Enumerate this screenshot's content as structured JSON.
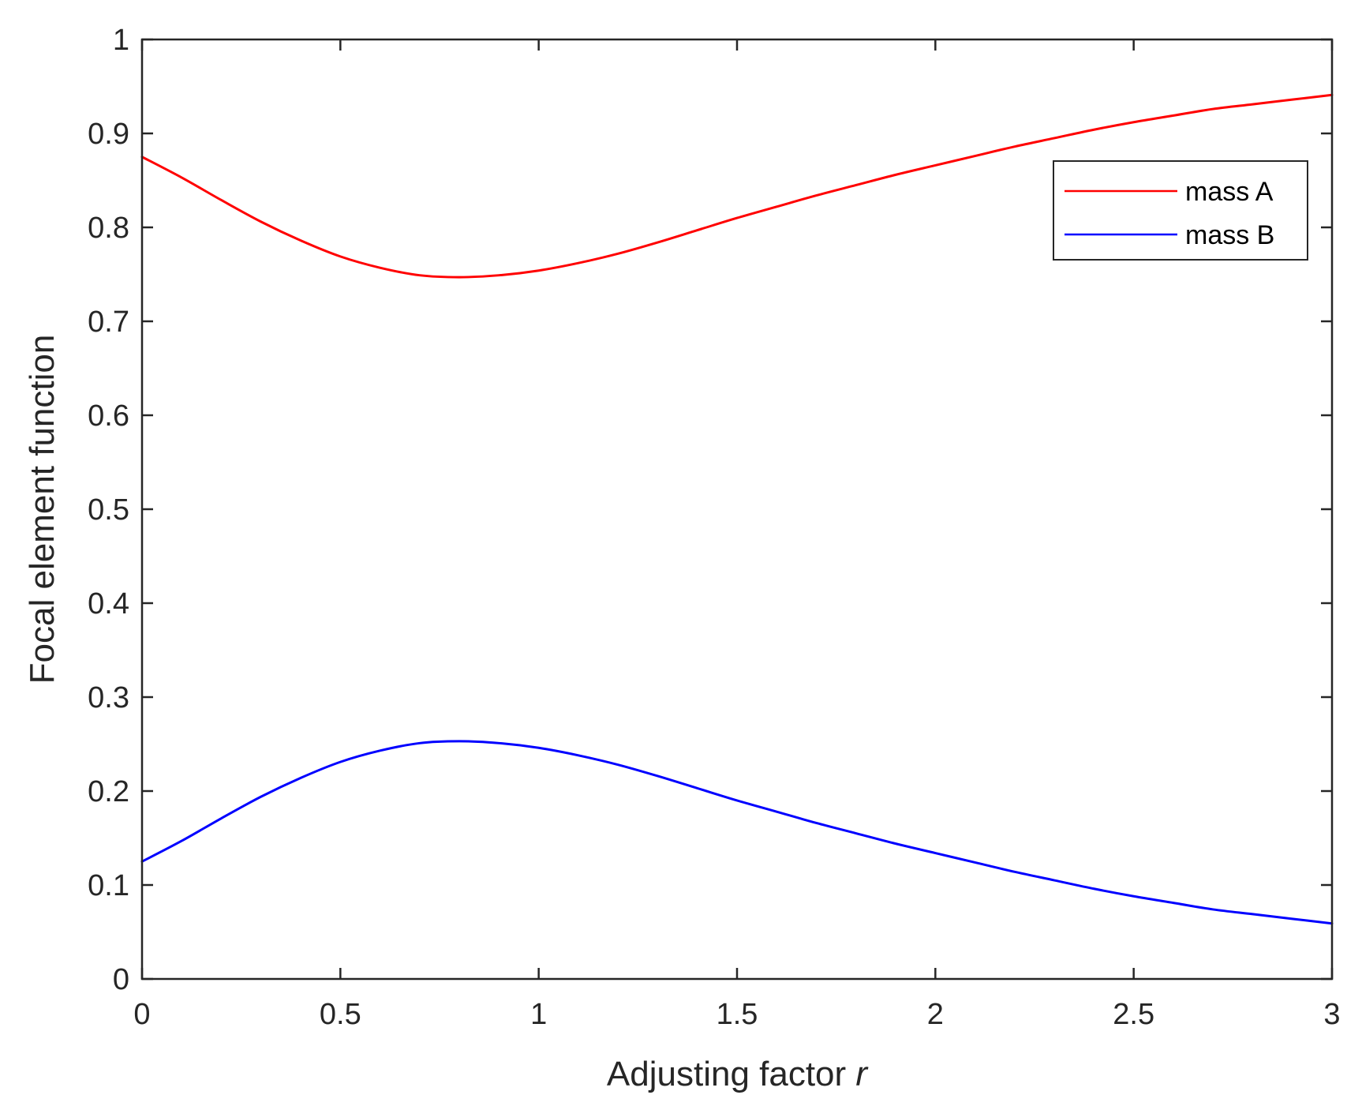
{
  "chart_data": {
    "type": "line",
    "title": "",
    "xlabel": "Adjusting factor",
    "xlabel_variable": "r",
    "ylabel": "Focal element function",
    "xlim": [
      0,
      3
    ],
    "ylim": [
      0,
      1
    ],
    "xticks": [
      0,
      0.5,
      1,
      1.5,
      2,
      2.5,
      3
    ],
    "xtick_labels": [
      "0",
      "0.5",
      "1",
      "1.5",
      "2",
      "2.5",
      "3"
    ],
    "yticks": [
      0,
      0.1,
      0.2,
      0.3,
      0.4,
      0.5,
      0.6,
      0.7,
      0.8,
      0.9,
      1
    ],
    "ytick_labels": [
      "0",
      "0.1",
      "0.2",
      "0.3",
      "0.4",
      "0.5",
      "0.6",
      "0.7",
      "0.8",
      "0.9",
      "1"
    ],
    "grid": false,
    "legend_position": "top-right",
    "x": [
      0,
      0.1,
      0.2,
      0.3,
      0.4,
      0.5,
      0.6,
      0.7,
      0.8,
      0.9,
      1.0,
      1.1,
      1.2,
      1.3,
      1.4,
      1.5,
      1.6,
      1.7,
      1.8,
      1.9,
      2.0,
      2.1,
      2.2,
      2.3,
      2.4,
      2.5,
      2.6,
      2.7,
      2.8,
      2.9,
      3.0
    ],
    "series": [
      {
        "name": "mass A",
        "color": "#ff0000",
        "values": [
          0.875,
          0.853,
          0.829,
          0.806,
          0.786,
          0.769,
          0.757,
          0.749,
          0.747,
          0.749,
          0.754,
          0.762,
          0.772,
          0.784,
          0.797,
          0.81,
          0.822,
          0.834,
          0.845,
          0.856,
          0.866,
          0.876,
          0.886,
          0.895,
          0.904,
          0.912,
          0.919,
          0.926,
          0.931,
          0.936,
          0.941
        ]
      },
      {
        "name": "mass B",
        "color": "#0000ff",
        "values": [
          0.125,
          0.147,
          0.171,
          0.194,
          0.214,
          0.231,
          0.243,
          0.251,
          0.253,
          0.251,
          0.246,
          0.238,
          0.228,
          0.216,
          0.203,
          0.19,
          0.178,
          0.166,
          0.155,
          0.144,
          0.134,
          0.124,
          0.114,
          0.105,
          0.096,
          0.088,
          0.081,
          0.074,
          0.069,
          0.064,
          0.059
        ]
      }
    ]
  }
}
